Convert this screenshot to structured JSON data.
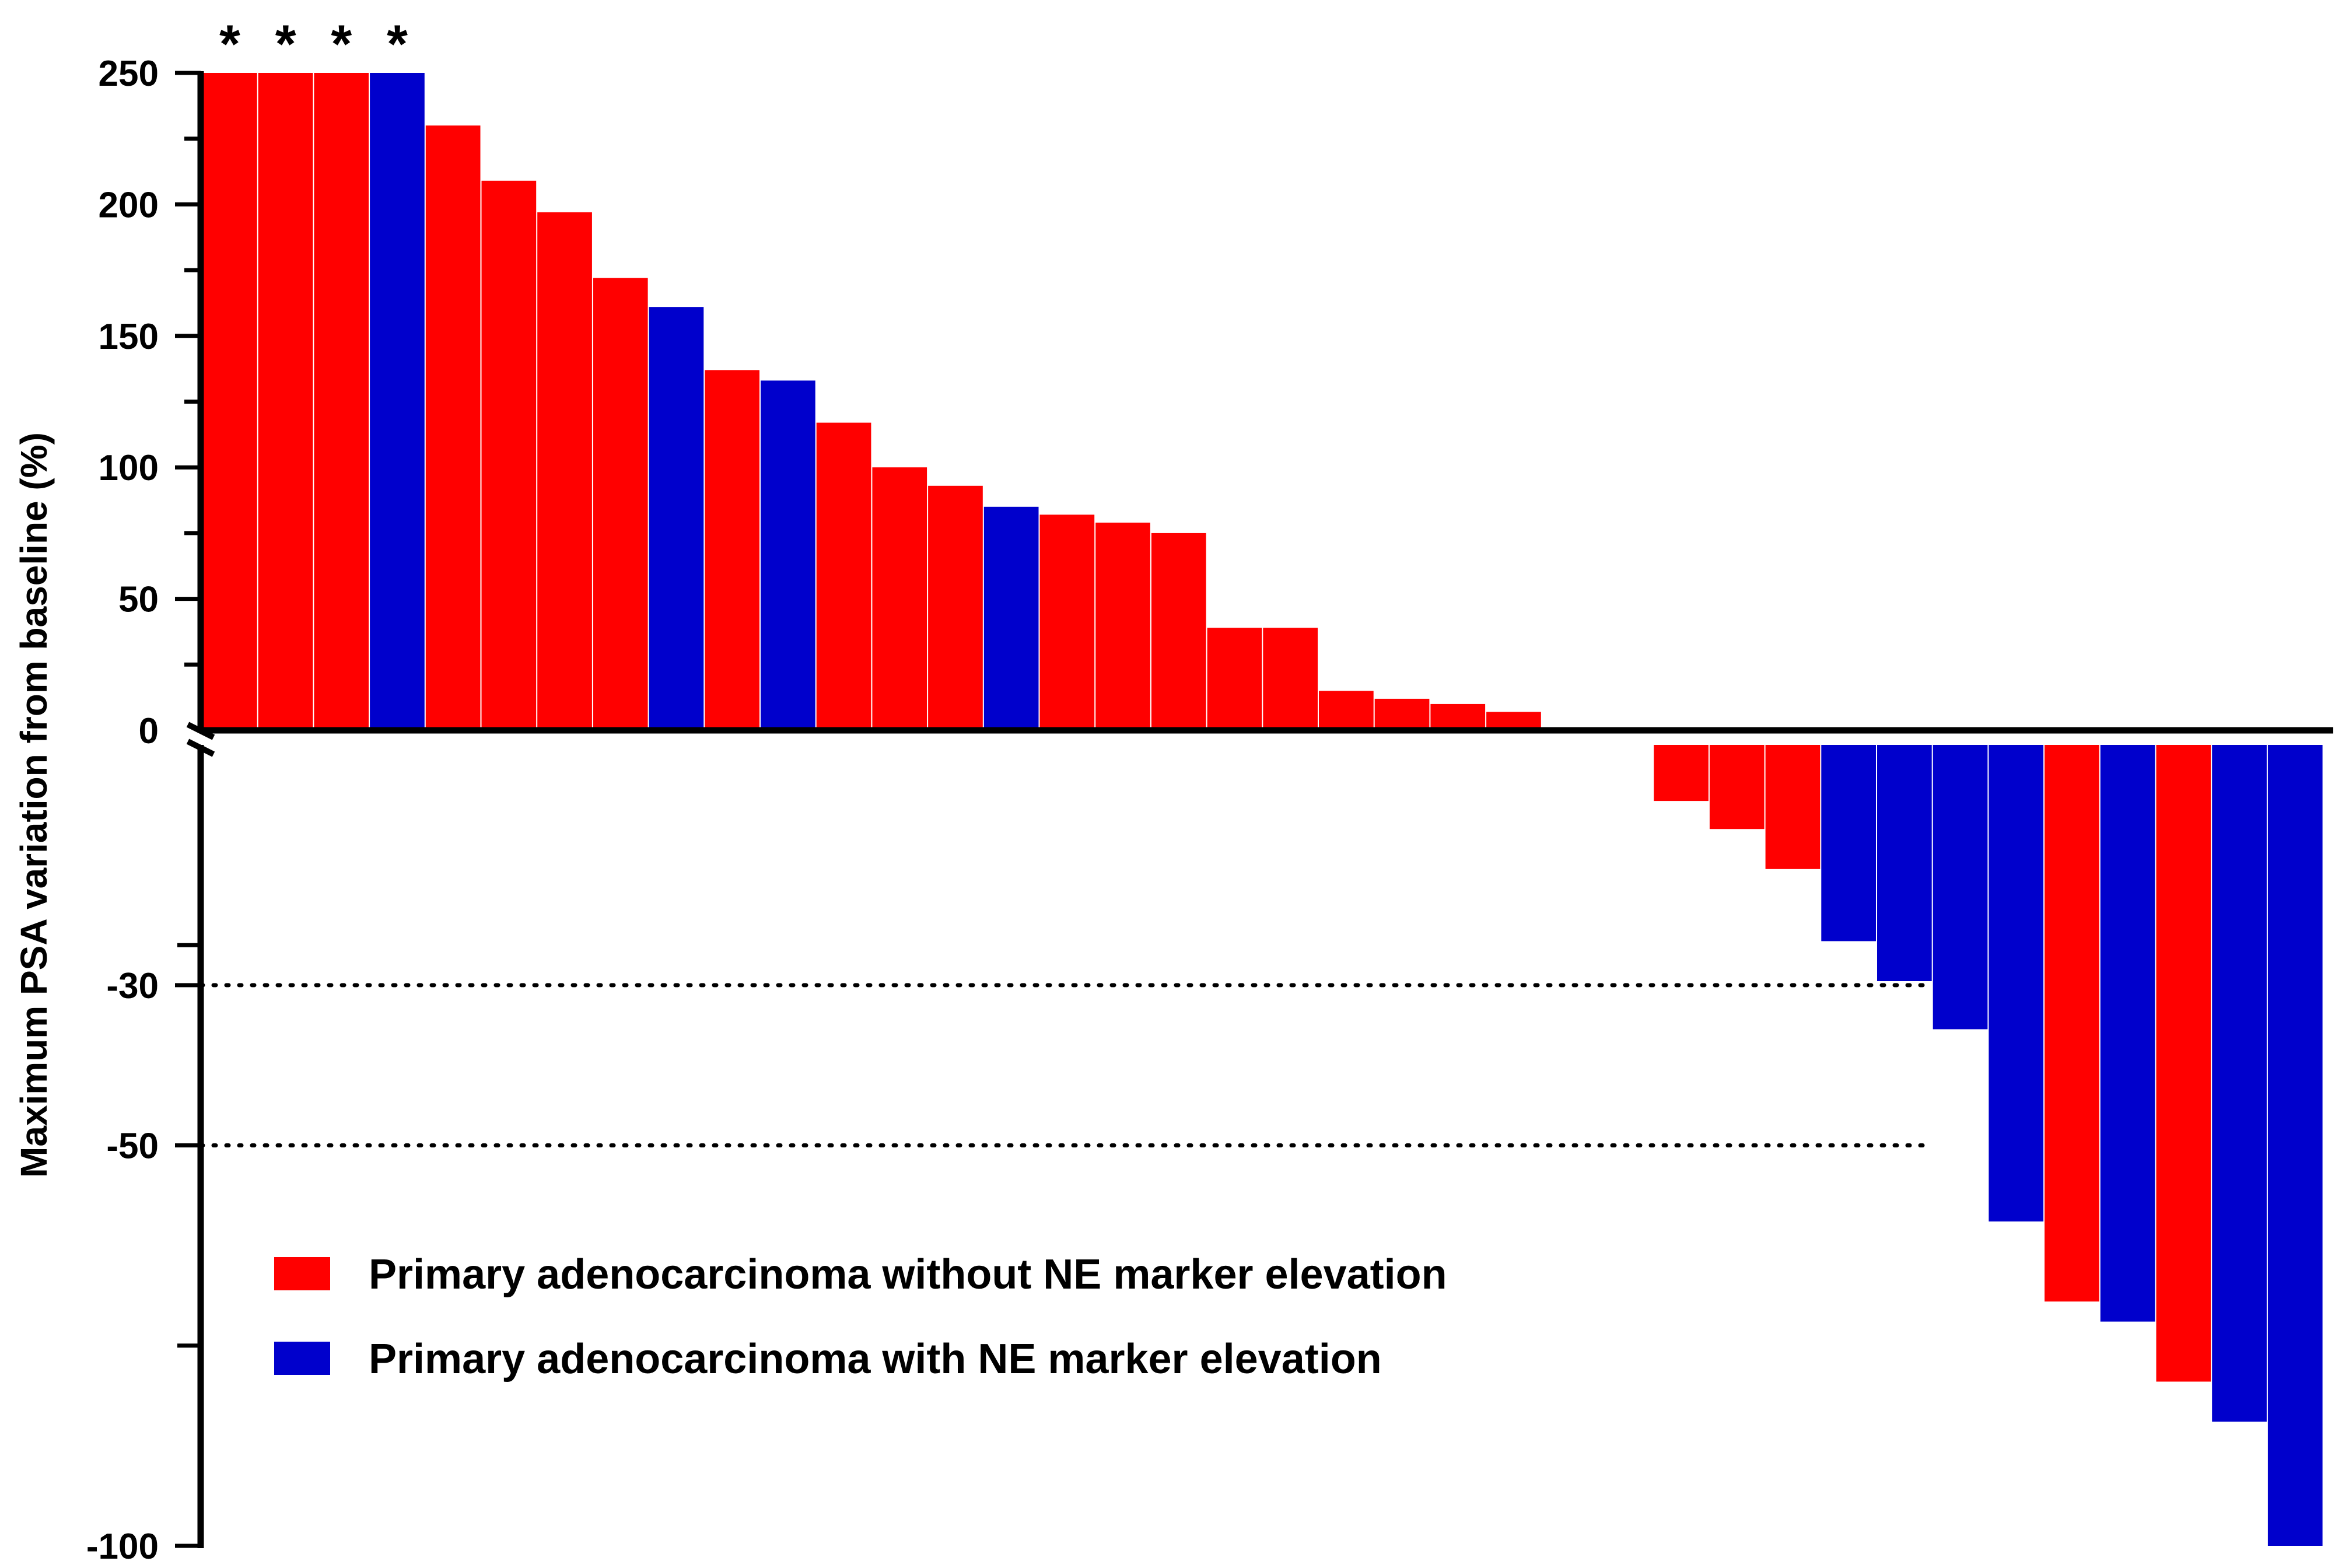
{
  "chart_data": {
    "type": "bar",
    "title": "",
    "xlabel": "",
    "ylabel": "Maximum PSA variation from baseline (%)",
    "upper_axis": {
      "range": [
        0,
        250
      ],
      "ticks": [
        "0",
        "50",
        "100",
        "150",
        "200",
        "250"
      ],
      "minor_step": 25
    },
    "lower_axis": {
      "range": [
        0,
        -100
      ],
      "ticks": [
        "-30",
        "-50",
        "-100"
      ],
      "minor_step": 25
    },
    "reference_lines": [
      {
        "value": -30,
        "style": "dotted"
      },
      {
        "value": -50,
        "style": "dotted"
      }
    ],
    "truncated_marker": "*",
    "series": [
      {
        "name": "Primary adenocarcinoma without NE marker elevation",
        "color": "#ff0000",
        "key": "red"
      },
      {
        "name": "Primary adenocarcinoma with NE marker elevation",
        "color": "#0000cc",
        "key": "blue"
      }
    ],
    "bars": [
      {
        "value": 250,
        "series": "red",
        "truncated": true
      },
      {
        "value": 250,
        "series": "red",
        "truncated": true
      },
      {
        "value": 250,
        "series": "red",
        "truncated": true
      },
      {
        "value": 250,
        "series": "blue",
        "truncated": true
      },
      {
        "value": 230,
        "series": "red"
      },
      {
        "value": 209,
        "series": "red"
      },
      {
        "value": 197,
        "series": "red"
      },
      {
        "value": 172,
        "series": "red"
      },
      {
        "value": 161,
        "series": "blue"
      },
      {
        "value": 137,
        "series": "red"
      },
      {
        "value": 133,
        "series": "blue"
      },
      {
        "value": 117,
        "series": "red"
      },
      {
        "value": 100,
        "series": "red"
      },
      {
        "value": 93,
        "series": "red"
      },
      {
        "value": 85,
        "series": "blue"
      },
      {
        "value": 82,
        "series": "red"
      },
      {
        "value": 79,
        "series": "red"
      },
      {
        "value": 75,
        "series": "red"
      },
      {
        "value": 39,
        "series": "red"
      },
      {
        "value": 39,
        "series": "red"
      },
      {
        "value": 15,
        "series": "red"
      },
      {
        "value": 12,
        "series": "red"
      },
      {
        "value": 10,
        "series": "red"
      },
      {
        "value": 7,
        "series": "red"
      },
      {
        "value": 1,
        "series": "red"
      },
      {
        "value": 0,
        "series": "red"
      },
      {
        "value": -7,
        "series": "red"
      },
      {
        "value": -10.5,
        "series": "red"
      },
      {
        "value": -15.5,
        "series": "red"
      },
      {
        "value": -24.5,
        "series": "blue"
      },
      {
        "value": -29.5,
        "series": "blue"
      },
      {
        "value": -35.5,
        "series": "blue"
      },
      {
        "value": -59.5,
        "series": "blue"
      },
      {
        "value": -69.5,
        "series": "red"
      },
      {
        "value": -72,
        "series": "blue"
      },
      {
        "value": -79.5,
        "series": "red"
      },
      {
        "value": -84.5,
        "series": "blue"
      },
      {
        "value": -100,
        "series": "blue"
      }
    ]
  }
}
